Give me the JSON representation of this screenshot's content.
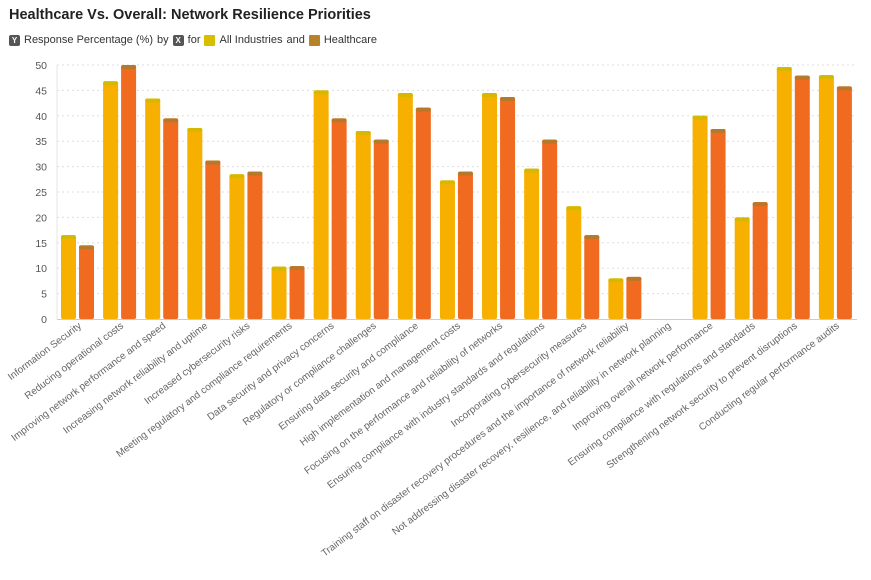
{
  "chart_data": {
    "type": "bar",
    "title": "Healthcare Vs. Overall: Network Resilience Priorities",
    "subtitle": {
      "y_measure": "Response Percentage (%)",
      "by": "by",
      "for": "for",
      "and": "and",
      "y_icon": "Y",
      "x_icon": "X"
    },
    "categories": [
      "Information Security",
      "Reducing operational costs",
      "Improving network performance and speed",
      "Increasing network reliability and uptime",
      "Increased cybersecurity risks",
      "Meeting regulatory and compliance requirements",
      "Data security and privacy concerns",
      "Regulatory or compliance challenges",
      "Ensuring data security and compliance",
      "High implementation and management costs",
      "Focusing on the performance and reliability of networks",
      "Ensuring compliance with industry standards and regulations",
      "Incorporating cybersecurity measures",
      "Training staff on disaster recovery procedures and the importance of network reliability",
      "Not addressing disaster recovery, resilience, and reliability in network planning",
      "Improving overall network performance",
      "Ensuring compliance with regulations and standards",
      "Strengthening network security to prevent disruptions",
      "Conducting regular performance audits"
    ],
    "series": [
      {
        "name": "All Industries",
        "color": "#F7B000",
        "cap": "#D6B800",
        "legend_color": "#D9BE00",
        "values": [
          16.5,
          46.8,
          43.4,
          37.6,
          28.5,
          10.3,
          45.0,
          37.0,
          44.5,
          27.3,
          44.5,
          29.6,
          22.2,
          8.0,
          0,
          40.0,
          20.0,
          49.6,
          48.0
        ]
      },
      {
        "name": "Healthcare",
        "color": "#F06A20",
        "cap": "#B8782A",
        "legend_color": "#B8822A",
        "values": [
          14.5,
          50.0,
          39.5,
          31.2,
          29.0,
          10.4,
          39.5,
          35.3,
          41.6,
          29.0,
          43.7,
          35.3,
          16.5,
          8.3,
          0,
          37.4,
          23.0,
          47.9,
          45.8
        ]
      }
    ],
    "yticks": [
      "0",
      "5",
      "10",
      "15",
      "20",
      "25",
      "30",
      "35",
      "40",
      "45",
      "50"
    ],
    "ylim": [
      0,
      50
    ],
    "grid": true,
    "legend": "top-left"
  }
}
